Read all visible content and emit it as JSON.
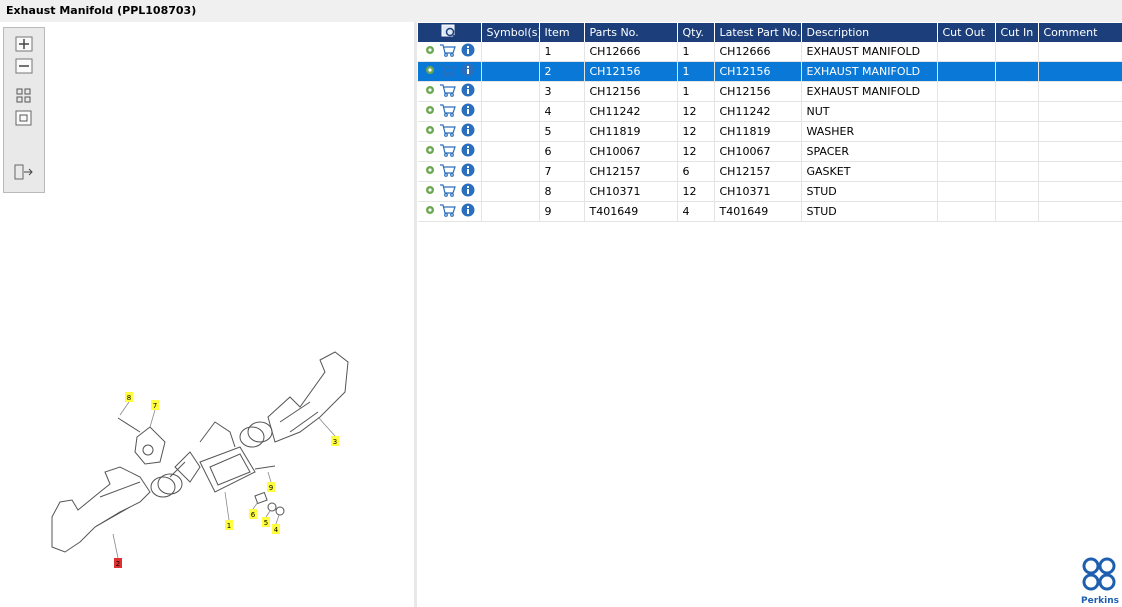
{
  "header": {
    "title": "Exhaust Manifold (PPL108703)"
  },
  "table": {
    "columns": [
      "Symbol(s)",
      "Item",
      "Parts No.",
      "Qty.",
      "Latest Part No.",
      "Description",
      "Cut Out",
      "Cut In",
      "Comment"
    ],
    "rows": [
      {
        "item": "1",
        "parts_no": "CH12666",
        "qty": "1",
        "latest": "CH12666",
        "description": "EXHAUST MANIFOLD"
      },
      {
        "item": "2",
        "parts_no": "CH12156",
        "qty": "1",
        "latest": "CH12156",
        "description": "EXHAUST MANIFOLD"
      },
      {
        "item": "3",
        "parts_no": "CH12156",
        "qty": "1",
        "latest": "CH12156",
        "description": "EXHAUST MANIFOLD"
      },
      {
        "item": "4",
        "parts_no": "CH11242",
        "qty": "12",
        "latest": "CH11242",
        "description": "NUT"
      },
      {
        "item": "5",
        "parts_no": "CH11819",
        "qty": "12",
        "latest": "CH11819",
        "description": "WASHER"
      },
      {
        "item": "6",
        "parts_no": "CH10067",
        "qty": "12",
        "latest": "CH10067",
        "description": "SPACER"
      },
      {
        "item": "7",
        "parts_no": "CH12157",
        "qty": "6",
        "latest": "CH12157",
        "description": "GASKET"
      },
      {
        "item": "8",
        "parts_no": "CH10371",
        "qty": "12",
        "latest": "CH10371",
        "description": "STUD"
      },
      {
        "item": "9",
        "parts_no": "T401649",
        "qty": "4",
        "latest": "T401649",
        "description": "STUD"
      }
    ]
  },
  "diagram": {
    "callouts": [
      "8",
      "7",
      "3",
      "9",
      "6",
      "5",
      "4",
      "1",
      "2"
    ]
  },
  "logo": {
    "text": "Perkins"
  }
}
